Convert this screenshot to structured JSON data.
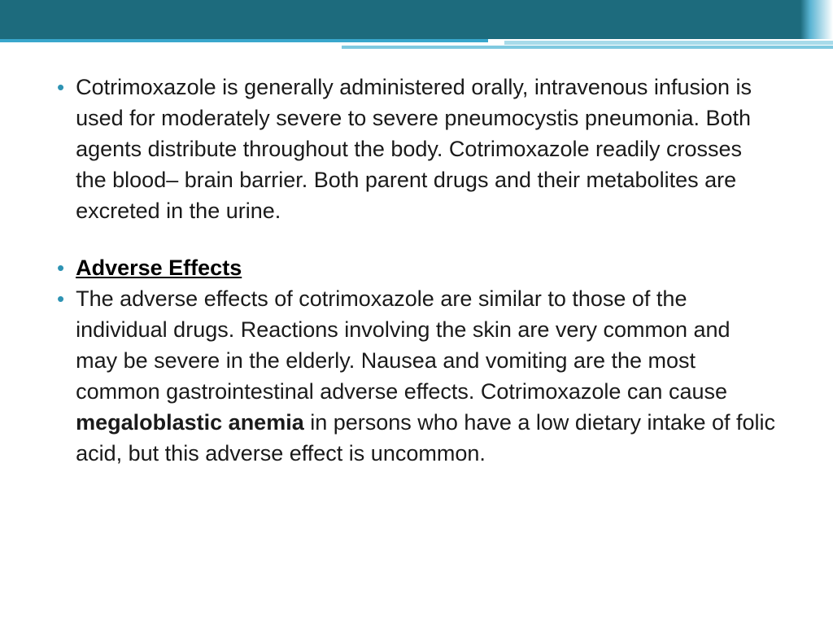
{
  "colors": {
    "teal_dark": "#1d6b7d",
    "teal_accent": "#39a7cc",
    "teal_light": "#7fc9e0",
    "teal_lighter": "#a8dbea",
    "bullet": "#2e93b3",
    "text": "#1a1a1a",
    "heading": "#000000",
    "background": "#ffffff"
  },
  "typography": {
    "body_fontsize": 27,
    "line_height": 38,
    "heading_weight": "bold",
    "heading_underline": true,
    "font_family": "Century Gothic"
  },
  "bullets": [
    {
      "type": "paragraph",
      "text": "Cotrimoxazole is generally administered orally, intravenous infusion is used for moderately severe to severe pneumocystis pneumonia.  Both agents distribute throughout the body. Cotrimoxazole readily crosses the blood– brain barrier. Both parent drugs and their metabolites are excreted in the urine."
    },
    {
      "type": "heading",
      "text": "Adverse Effects"
    },
    {
      "type": "paragraph",
      "text_before_bold": "The adverse effects of cotrimoxazole are similar to those of the individual drugs. Reactions involving the skin are very common and may be severe in the elderly. Nausea and vomiting are the most common gastrointestinal adverse effects. Cotrimoxazole can cause ",
      "bold_text": "megaloblastic anemia",
      "text_after_bold": " in persons who have a low dietary intake of folic acid, but this adverse effect is uncommon."
    }
  ]
}
